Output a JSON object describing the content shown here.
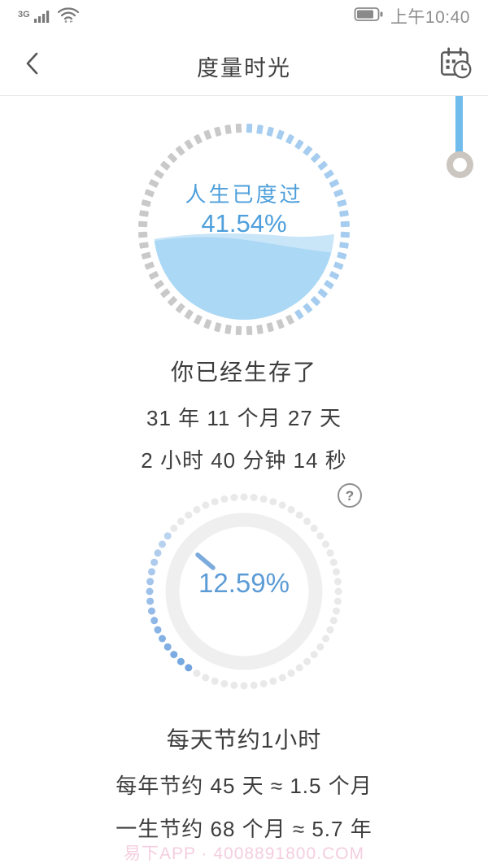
{
  "status_bar": {
    "network": "3G",
    "time": "上午10:40"
  },
  "nav": {
    "title": "度量时光"
  },
  "life_gauge": {
    "label": "人生已度过",
    "percent_text": "41.54%",
    "percent_value": 41.54
  },
  "survival": {
    "heading": "你已经生存了",
    "line1": "31 年 11 个月 27 天",
    "line2": "2 小时 40 分钟 14 秒"
  },
  "help": {
    "glyph": "?"
  },
  "sleep_gauge": {
    "percent_text": "12.59%",
    "percent_value": 12.59
  },
  "savings": {
    "heading": "每天节约1小时",
    "line1": "每年节约 45 天 ≈ 1.5 个月",
    "line2": "一生节约 68 个月 ≈ 5.7 年"
  },
  "watermark": "易下APP · 4008891800.COM",
  "colors": {
    "accent_blue": "#4e9fdb",
    "water_main": "#abd8f5",
    "water_light": "#c9e5f8",
    "tick_blue": "#a6cdef",
    "tick_gray": "#c9c9c9",
    "dot_blue": "#6fa3df",
    "dot_gray": "#e9e9e9",
    "ring_gray": "#efefef",
    "hand_blue": "#7baadc",
    "pin_blue": "#70bcec",
    "watermark_pink": "#f4cedf"
  }
}
